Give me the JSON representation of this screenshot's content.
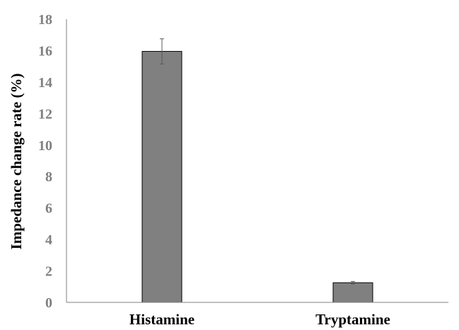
{
  "chart_data": {
    "type": "bar",
    "title": "",
    "xlabel": "",
    "ylabel": "Impedance change rate (%)",
    "categories": [
      "Histamine",
      "Tryptamine"
    ],
    "values": [
      15.95,
      1.25
    ],
    "errors": [
      0.8,
      0.08
    ],
    "ylim": [
      0,
      18
    ],
    "yticks": [
      "0",
      "2",
      "4",
      "6",
      "8",
      "10",
      "12",
      "14",
      "16",
      "18"
    ],
    "grid": false,
    "legend": "none",
    "colors": {
      "bar_fill": "#808080",
      "bar_stroke": "#000000",
      "tick_label": "#808080",
      "axis": "#808080",
      "error_bar": "#595959"
    }
  }
}
